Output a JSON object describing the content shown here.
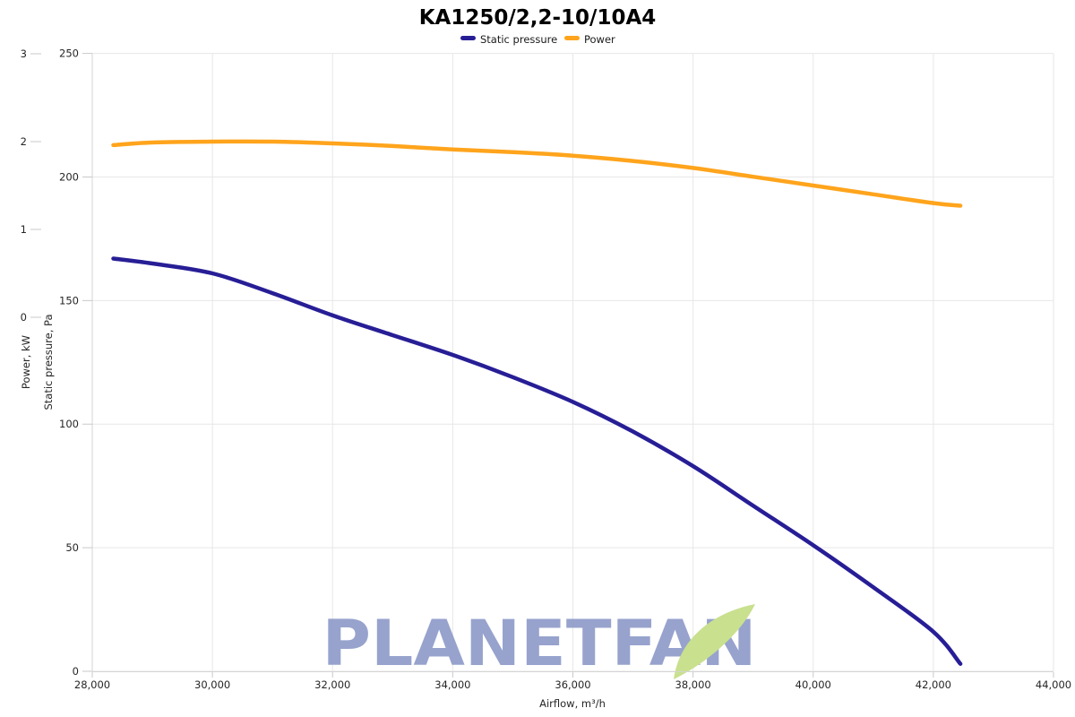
{
  "watermark": {
    "text": "PLANETFAN",
    "text_color": "#8F9CC9",
    "leaf_color": "#C9E08E"
  },
  "chart_data": {
    "type": "line",
    "title": "KA1250/2,2-10/10A4",
    "legend_position": "top-center",
    "grid": true,
    "background": "#FFFFFF",
    "grid_color": "#E7E7E7",
    "axis_color": "#D4D4D4",
    "tick_color": "#C9C9C9",
    "x_axis": {
      "label": "Airflow, m³/h",
      "min": 28000,
      "max": 44000,
      "tick_values": [
        28000,
        30000,
        32000,
        34000,
        36000,
        38000,
        40000,
        42000,
        44000
      ],
      "tick_labels": [
        "28,000",
        "30,000",
        "32,000",
        "34,000",
        "36,000",
        "38,000",
        "40,000",
        "42,000",
        "44,000"
      ]
    },
    "y_axes": [
      {
        "id": "power",
        "label": "Power, kW",
        "tick_values": [
          0,
          1,
          2,
          3
        ],
        "tick_labels": [
          "0",
          "1",
          "2",
          "3"
        ],
        "range": [
          0,
          3
        ]
      },
      {
        "id": "pressure",
        "label": "Static pressure, Pa",
        "tick_values": [
          0,
          50,
          100,
          150,
          200,
          250
        ],
        "tick_labels": [
          "0",
          "50",
          "100",
          "150",
          "200",
          "250"
        ],
        "range": [
          0,
          250
        ]
      }
    ],
    "series": [
      {
        "name": "Static pressure",
        "axis": "pressure",
        "color": "#271E96",
        "points": [
          [
            28350,
            167
          ],
          [
            29000,
            165
          ],
          [
            30000,
            161
          ],
          [
            31000,
            153
          ],
          [
            32000,
            144
          ],
          [
            33000,
            136
          ],
          [
            34000,
            128
          ],
          [
            35000,
            119
          ],
          [
            36000,
            109
          ],
          [
            37000,
            97
          ],
          [
            38000,
            83
          ],
          [
            39000,
            67
          ],
          [
            40000,
            51
          ],
          [
            41000,
            34
          ],
          [
            42000,
            16
          ],
          [
            42450,
            3
          ]
        ]
      },
      {
        "name": "Power",
        "axis": "power",
        "color": "#FFA41C",
        "points": [
          [
            28350,
            1.96
          ],
          [
            29000,
            1.99
          ],
          [
            30000,
            2.0
          ],
          [
            31000,
            2.0
          ],
          [
            32000,
            1.98
          ],
          [
            33000,
            1.95
          ],
          [
            34000,
            1.91
          ],
          [
            35000,
            1.88
          ],
          [
            36000,
            1.84
          ],
          [
            37000,
            1.78
          ],
          [
            38000,
            1.7
          ],
          [
            39000,
            1.6
          ],
          [
            40000,
            1.5
          ],
          [
            41000,
            1.4
          ],
          [
            42000,
            1.3
          ],
          [
            42450,
            1.27
          ]
        ]
      }
    ]
  }
}
